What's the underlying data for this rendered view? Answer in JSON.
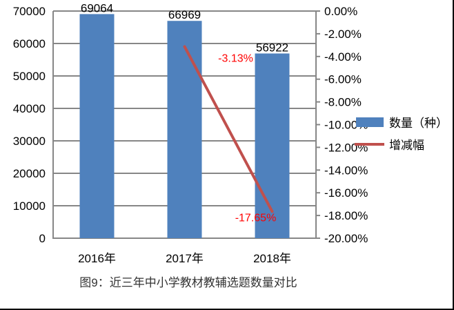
{
  "chart_data": {
    "type": "bar",
    "combo": "bar + line (secondary axis)",
    "title": "",
    "caption": "图9：近三年中小学教材教辅选题数量对比",
    "categories": [
      "2016年",
      "2017年",
      "2018年"
    ],
    "series": [
      {
        "name": "数量（种）",
        "type": "bar",
        "axis": "left",
        "color": "#4F81BD",
        "values": [
          69064,
          66969,
          56922
        ],
        "data_labels": [
          "69064",
          "66969",
          "56922"
        ]
      },
      {
        "name": "增减幅",
        "type": "line",
        "axis": "right",
        "color": "#C0504D",
        "values": [
          null,
          -3.13,
          -17.65
        ],
        "data_labels": [
          "",
          "-3.13%",
          "-17.65%"
        ],
        "label_color": "#FF0000"
      }
    ],
    "left_axis": {
      "ylim": [
        0,
        70000
      ],
      "ticks": [
        "0",
        "10000",
        "20000",
        "30000",
        "40000",
        "50000",
        "60000",
        "70000"
      ]
    },
    "right_axis": {
      "ylim": [
        -20,
        0
      ],
      "ticks": [
        "0.00%",
        "-2.00%",
        "-4.00%",
        "-6.00%",
        "-8.00%",
        "-10.00%",
        "-12.00%",
        "-14.00%",
        "-16.00%",
        "-18.00%",
        "-20.00%"
      ]
    },
    "grid": true,
    "legend": {
      "position": "right",
      "entries": [
        "数量（种）",
        "增减幅"
      ]
    }
  }
}
